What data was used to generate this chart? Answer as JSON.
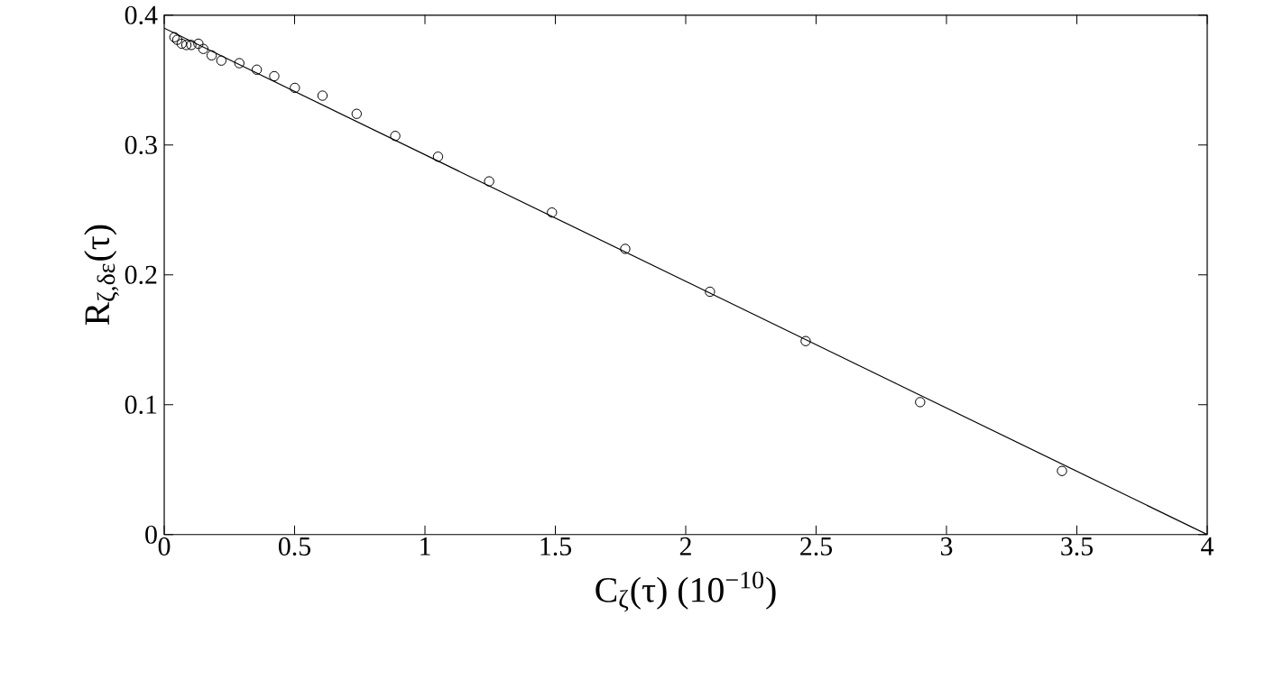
{
  "chart_data": {
    "type": "scatter",
    "xlabel": "C$_{ζ}$(τ)  (10$^{−10}$)",
    "ylabel": "R$_{ζ,δε}$(τ)",
    "xlim": [
      0,
      4
    ],
    "ylim": [
      0,
      0.4
    ],
    "xticks": [
      0,
      0.5,
      1,
      1.5,
      2,
      2.5,
      3,
      3.5,
      4
    ],
    "yticks": [
      0,
      0.1,
      0.2,
      0.3,
      0.4
    ],
    "grid": false,
    "series": [
      {
        "marker": "circle",
        "color": "#000000",
        "x": [
          0.039,
          0.05,
          0.067,
          0.085,
          0.104,
          0.131,
          0.15,
          0.182,
          0.219,
          0.288,
          0.355,
          0.422,
          0.501,
          0.607,
          0.738,
          0.886,
          1.05,
          1.246,
          1.487,
          1.768,
          2.093,
          2.46,
          2.899,
          3.443
        ],
        "values": [
          0.383,
          0.381,
          0.378,
          0.377,
          0.377,
          0.378,
          0.374,
          0.369,
          0.365,
          0.363,
          0.358,
          0.353,
          0.344,
          0.338,
          0.324,
          0.307,
          0.291,
          0.272,
          0.248,
          0.22,
          0.187,
          0.149,
          0.102,
          0.049
        ]
      },
      {
        "type": "line",
        "marker": "none",
        "line_style": "solid",
        "color": "#000000",
        "x": [
          0,
          4
        ],
        "values": [
          0.39,
          0
        ]
      }
    ]
  }
}
